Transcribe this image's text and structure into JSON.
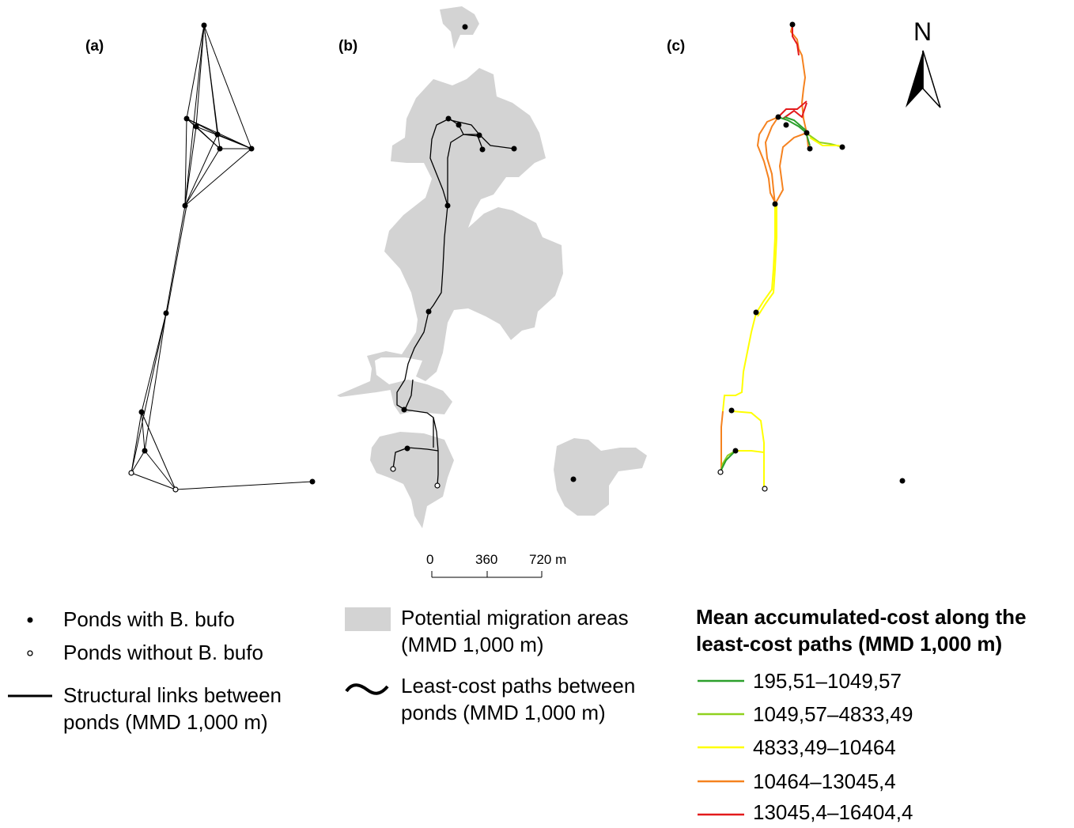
{
  "panels": {
    "a": "(a)",
    "b": "(b)",
    "c": "(c)"
  },
  "north_arrow": "N",
  "scale_bar": {
    "ticks": [
      "0",
      "360",
      "720 m"
    ]
  },
  "legend_symbols": {
    "ponds_with": "Ponds with B. bufo",
    "ponds_without": "Ponds without B. bufo",
    "structural_links": [
      "Structural links between",
      "ponds (MMD 1,000 m)"
    ],
    "migration_areas": [
      "Potential migration areas",
      "(MMD 1,000 m)"
    ],
    "least_cost_paths": [
      "Least-cost paths between",
      "ponds (MMD 1,000 m)"
    ]
  },
  "cost_legend": {
    "title": [
      "Mean accumulated-cost along the",
      "least-cost paths (MMD 1,000 m)"
    ],
    "classes": [
      {
        "label": "195,51–1049,57",
        "color": "#2ca02c"
      },
      {
        "label": "1049,57–4833,49",
        "color": "#8fd11e"
      },
      {
        "label": "4833,49–10464",
        "color": "#ffff00"
      },
      {
        "label": "10464–13045,4",
        "color": "#f5821f"
      },
      {
        "label": "13045,4–16404,4",
        "color": "#e31a1c"
      }
    ]
  },
  "colors": {
    "migration_area": "#d3d3d3",
    "links": "#000000"
  }
}
